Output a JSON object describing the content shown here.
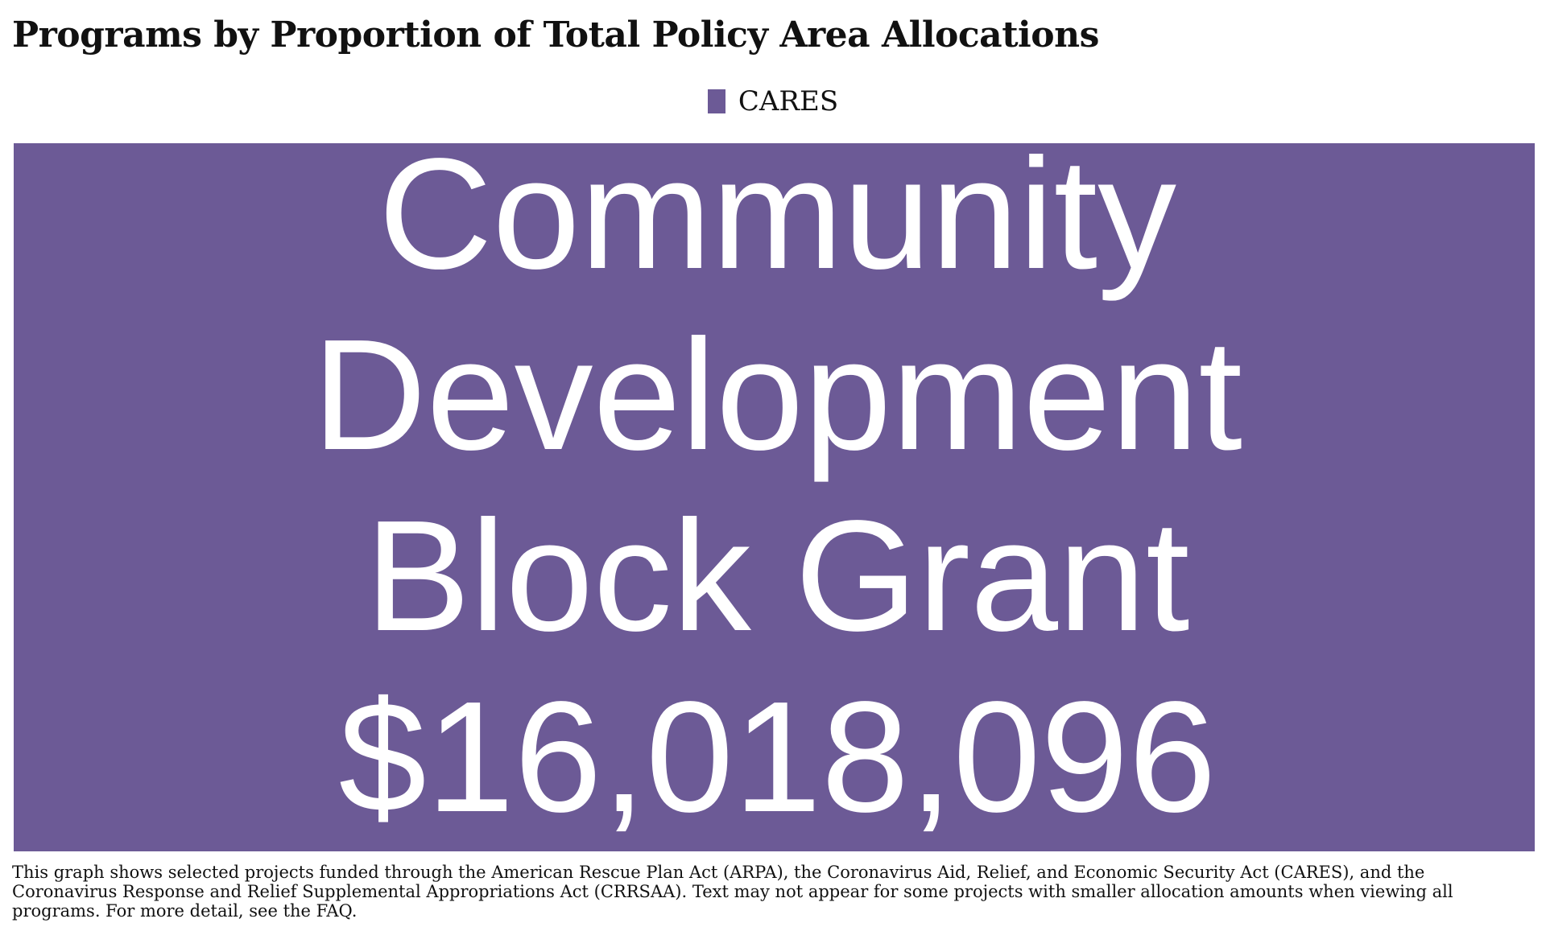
{
  "chart_data": {
    "type": "treemap",
    "title": "Programs by Proportion of Total Policy Area Allocations",
    "legend": {
      "placement": "top-center",
      "entries": [
        {
          "name": "CARES",
          "color": "#6c5a96"
        }
      ]
    },
    "nodes": [
      {
        "label": "Community Development Block Grant",
        "value": 16018096,
        "value_label": "$16,018,096",
        "series": "CARES",
        "color": "#6c5a96"
      }
    ]
  },
  "footnote": "This graph shows selected projects funded through the American Rescue Plan Act (ARPA), the Coronavirus Aid, Relief, and Economic Security Act (CARES), and the Coronavirus Response and Relief Supplemental Appropriations Act (CRRSAA). Text may not appear for some projects with smaller allocation amounts when viewing all programs. For more detail, see the FAQ."
}
